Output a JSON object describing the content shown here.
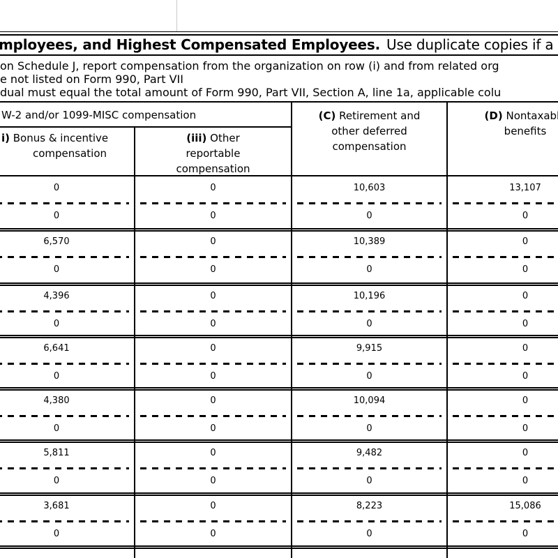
{
  "page": {
    "title_bold_fragment": "mployees, and Highest Compensated Employees.",
    "title_note_fragment": "Use duplicate copies if a",
    "instructions": [
      "on Schedule J, report compensation from the organization on row (i) and from related org",
      "e not listed on Form 990, Part VII",
      "dual must equal the total amount of Form 990, Part VII, Section A, line 1a, applicable colu"
    ]
  },
  "table": {
    "b_span_header_fragment": "W-2 and/or 1099-MISC compensation",
    "columns": [
      {
        "id": "bonus-incentive",
        "prefix": "i)",
        "lines": [
          " Bonus & incentive",
          "compensation"
        ]
      },
      {
        "id": "other-reportable",
        "prefix": "(iii)",
        "lines": [
          " Other",
          "reportable",
          "compensation"
        ]
      },
      {
        "id": "retirement-deferred",
        "prefix": "(C)",
        "lines": [
          " Retirement and",
          "other deferred",
          "compensation"
        ]
      },
      {
        "id": "nontaxable-benefits",
        "prefix": "(D)",
        "lines": [
          " Nontaxable",
          "benefits"
        ]
      }
    ],
    "rows": [
      {
        "row_i_values": [
          "0",
          "0",
          "10,603",
          "13,107"
        ],
        "row_ii_values": [
          "0",
          "0",
          "0",
          "0"
        ]
      },
      {
        "row_i_values": [
          "6,570",
          "0",
          "10,389",
          "0"
        ],
        "row_ii_values": [
          "0",
          "0",
          "0",
          "0"
        ]
      },
      {
        "row_i_values": [
          "4,396",
          "0",
          "10,196",
          "0"
        ],
        "row_ii_values": [
          "0",
          "0",
          "0",
          "0"
        ]
      },
      {
        "row_i_values": [
          "6,641",
          "0",
          "9,915",
          "0"
        ],
        "row_ii_values": [
          "0",
          "0",
          "0",
          "0"
        ]
      },
      {
        "row_i_values": [
          "4,380",
          "0",
          "10,094",
          "0"
        ],
        "row_ii_values": [
          "0",
          "0",
          "0",
          "0"
        ]
      },
      {
        "row_i_values": [
          "5,811",
          "0",
          "9,482",
          "0"
        ],
        "row_ii_values": [
          "0",
          "0",
          "0",
          "0"
        ]
      },
      {
        "row_i_values": [
          "3,681",
          "0",
          "8,223",
          "15,086"
        ],
        "row_ii_values": [
          "0",
          "0",
          "0",
          "0"
        ]
      }
    ]
  },
  "colors": {
    "text": "#000000",
    "line": "#000000",
    "faint_line": "#c9c9c9",
    "background": "#ffffff"
  }
}
